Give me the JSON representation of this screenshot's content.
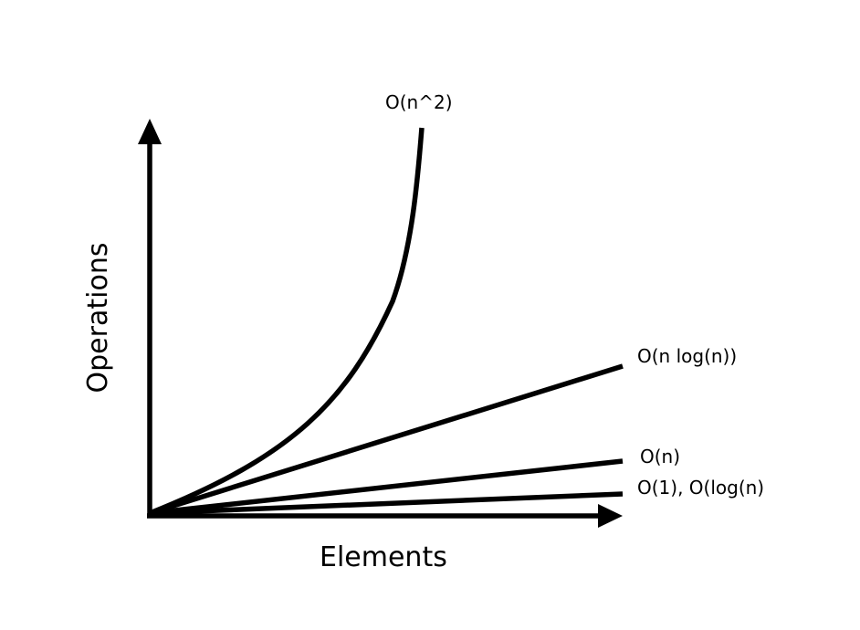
{
  "diagram": {
    "x_axis_label": "Elements",
    "y_axis_label": "Operations",
    "curves": [
      {
        "id": "n2",
        "label": "O(n^2)"
      },
      {
        "id": "nlogn",
        "label": "O(n log(n))"
      },
      {
        "id": "n",
        "label": "O(n)"
      },
      {
        "id": "const",
        "label": "O(1), O(log(n)"
      }
    ],
    "line_color": "#000000",
    "background_color": "#ffffff"
  }
}
